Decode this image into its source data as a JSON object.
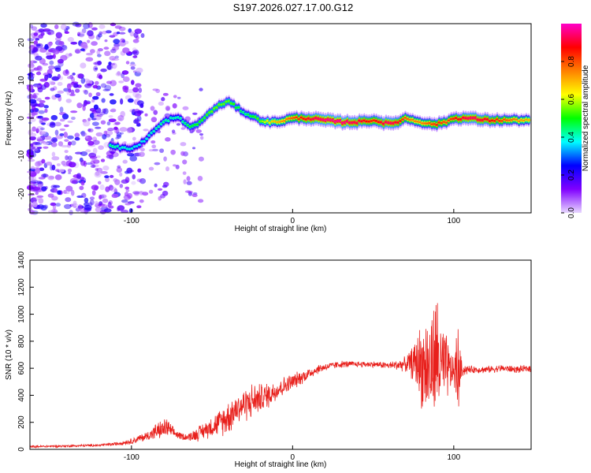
{
  "title": "S197.2026.027.17.00.G12",
  "chart_data": [
    {
      "type": "heatmap",
      "name": "spectrogram",
      "xlabel": "Height of straight line (km)",
      "ylabel": "Frequency (Hz)",
      "xlim": [
        -163,
        148
      ],
      "ylim": [
        -25,
        25
      ],
      "xticks": [
        -100,
        0,
        100
      ],
      "yticks": [
        -20,
        -10,
        0,
        10,
        20
      ],
      "colorbar": {
        "label": "Normalized spectral amplitude",
        "range": [
          0,
          1
        ],
        "ticks": [
          0.0,
          0.2,
          0.4,
          0.6,
          0.8
        ],
        "colormap": [
          "#ff00c8",
          "#ff0000",
          "#ff8000",
          "#ffff00",
          "#00ff00",
          "#00ffff",
          "#0000ff",
          "#8000ff",
          "#e8d8ff"
        ]
      },
      "ridge": {
        "x": [
          -113,
          -105,
          -100,
          -95,
          -90,
          -85,
          -80,
          -75,
          -70,
          -65,
          -60,
          -55,
          -50,
          -45,
          -40,
          -35,
          -30,
          -25,
          -20,
          -15,
          -10,
          -5,
          0,
          10,
          20,
          30,
          40,
          50,
          55,
          60,
          65,
          70,
          75,
          80,
          85,
          90,
          95,
          100,
          110,
          120,
          130,
          140,
          148
        ],
        "y": [
          -7,
          -8,
          -8,
          -7,
          -5,
          -3,
          -1,
          0,
          0,
          -2,
          -2,
          0,
          2,
          3.5,
          4.5,
          3,
          1.5,
          0.5,
          -0.5,
          -1,
          -1,
          -0.5,
          0,
          0,
          -0.5,
          -1,
          -1,
          -0.5,
          -1,
          -1.5,
          -1,
          0,
          -0.5,
          -1,
          -1.5,
          -1.5,
          -1,
          0,
          0,
          -0.5,
          -0.5,
          -0.5,
          -0.5
        ],
        "amplitude": [
          0.45,
          0.4,
          0.4,
          0.38,
          0.4,
          0.42,
          0.45,
          0.42,
          0.42,
          0.48,
          0.5,
          0.52,
          0.55,
          0.55,
          0.55,
          0.5,
          0.45,
          0.5,
          0.55,
          0.65,
          0.7,
          0.75,
          0.8,
          0.9,
          0.97,
          0.97,
          0.92,
          0.85,
          0.9,
          0.95,
          0.9,
          0.8,
          0.75,
          0.75,
          0.8,
          0.85,
          0.8,
          0.85,
          0.95,
          0.9,
          0.82,
          0.75,
          0.7
        ]
      }
    },
    {
      "type": "line",
      "name": "snr",
      "xlabel": "Height of straight line (km)",
      "ylabel": "SNR (10 * v/v)",
      "xlim": [
        -163,
        148
      ],
      "ylim": [
        0,
        1400
      ],
      "xticks": [
        -100,
        0,
        100
      ],
      "yticks": [
        0,
        200,
        400,
        600,
        800,
        1000,
        1200,
        1400
      ],
      "color": "#e8201c",
      "envelope": {
        "x": [
          -163,
          -140,
          -120,
          -110,
          -100,
          -90,
          -85,
          -80,
          -78,
          -75,
          -70,
          -65,
          -60,
          -55,
          -50,
          -45,
          -40,
          -35,
          -30,
          -25,
          -20,
          -15,
          -10,
          -5,
          0,
          5,
          10,
          15,
          20,
          25,
          30,
          40,
          50,
          60,
          70,
          75,
          78,
          80,
          82,
          85,
          88,
          90,
          92,
          95,
          98,
          100,
          102,
          105,
          110,
          120,
          130,
          140,
          148
        ],
        "mean": [
          20,
          25,
          30,
          40,
          60,
          100,
          130,
          150,
          160,
          130,
          100,
          90,
          110,
          140,
          170,
          200,
          240,
          300,
          330,
          360,
          380,
          400,
          440,
          470,
          500,
          530,
          560,
          590,
          610,
          620,
          630,
          630,
          630,
          620,
          630,
          640,
          650,
          620,
          620,
          600,
          640,
          700,
          600,
          600,
          580,
          580,
          580,
          590,
          590,
          590,
          600,
          590,
          600
        ],
        "amp": [
          10,
          10,
          10,
          15,
          25,
          40,
          70,
          80,
          90,
          50,
          30,
          30,
          60,
          70,
          90,
          110,
          150,
          130,
          140,
          150,
          120,
          110,
          90,
          80,
          70,
          60,
          50,
          40,
          35,
          30,
          30,
          25,
          25,
          30,
          60,
          150,
          280,
          350,
          400,
          450,
          500,
          560,
          400,
          300,
          200,
          80,
          480,
          60,
          30,
          30,
          30,
          30,
          30
        ]
      }
    }
  ]
}
